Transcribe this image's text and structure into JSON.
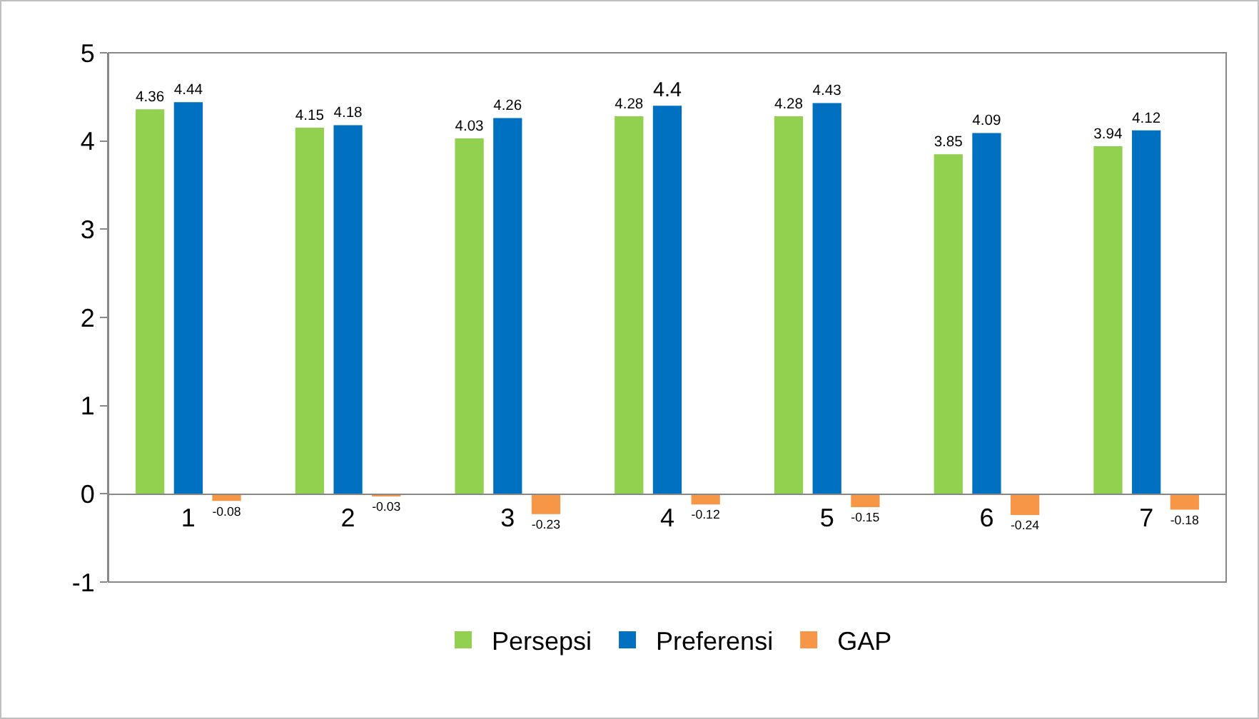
{
  "chart_data": {
    "type": "bar",
    "categories": [
      "1",
      "2",
      "3",
      "4",
      "5",
      "6",
      "7"
    ],
    "series": [
      {
        "name": "Persepsi",
        "color": "#92d050",
        "values": [
          4.36,
          4.15,
          4.03,
          4.28,
          4.28,
          3.85,
          3.94
        ]
      },
      {
        "name": "Preferensi",
        "color": "#0070c0",
        "values": [
          4.44,
          4.18,
          4.26,
          4.4,
          4.43,
          4.09,
          4.12
        ]
      },
      {
        "name": "GAP",
        "color": "#f79646",
        "values": [
          -0.08,
          -0.03,
          -0.23,
          -0.12,
          -0.15,
          -0.24,
          -0.18
        ]
      }
    ],
    "ylim": [
      -1,
      5
    ],
    "yticks": [
      -1,
      0,
      1,
      2,
      3,
      4,
      5
    ],
    "grid": false,
    "legend": "bottom",
    "data_labels": true
  }
}
